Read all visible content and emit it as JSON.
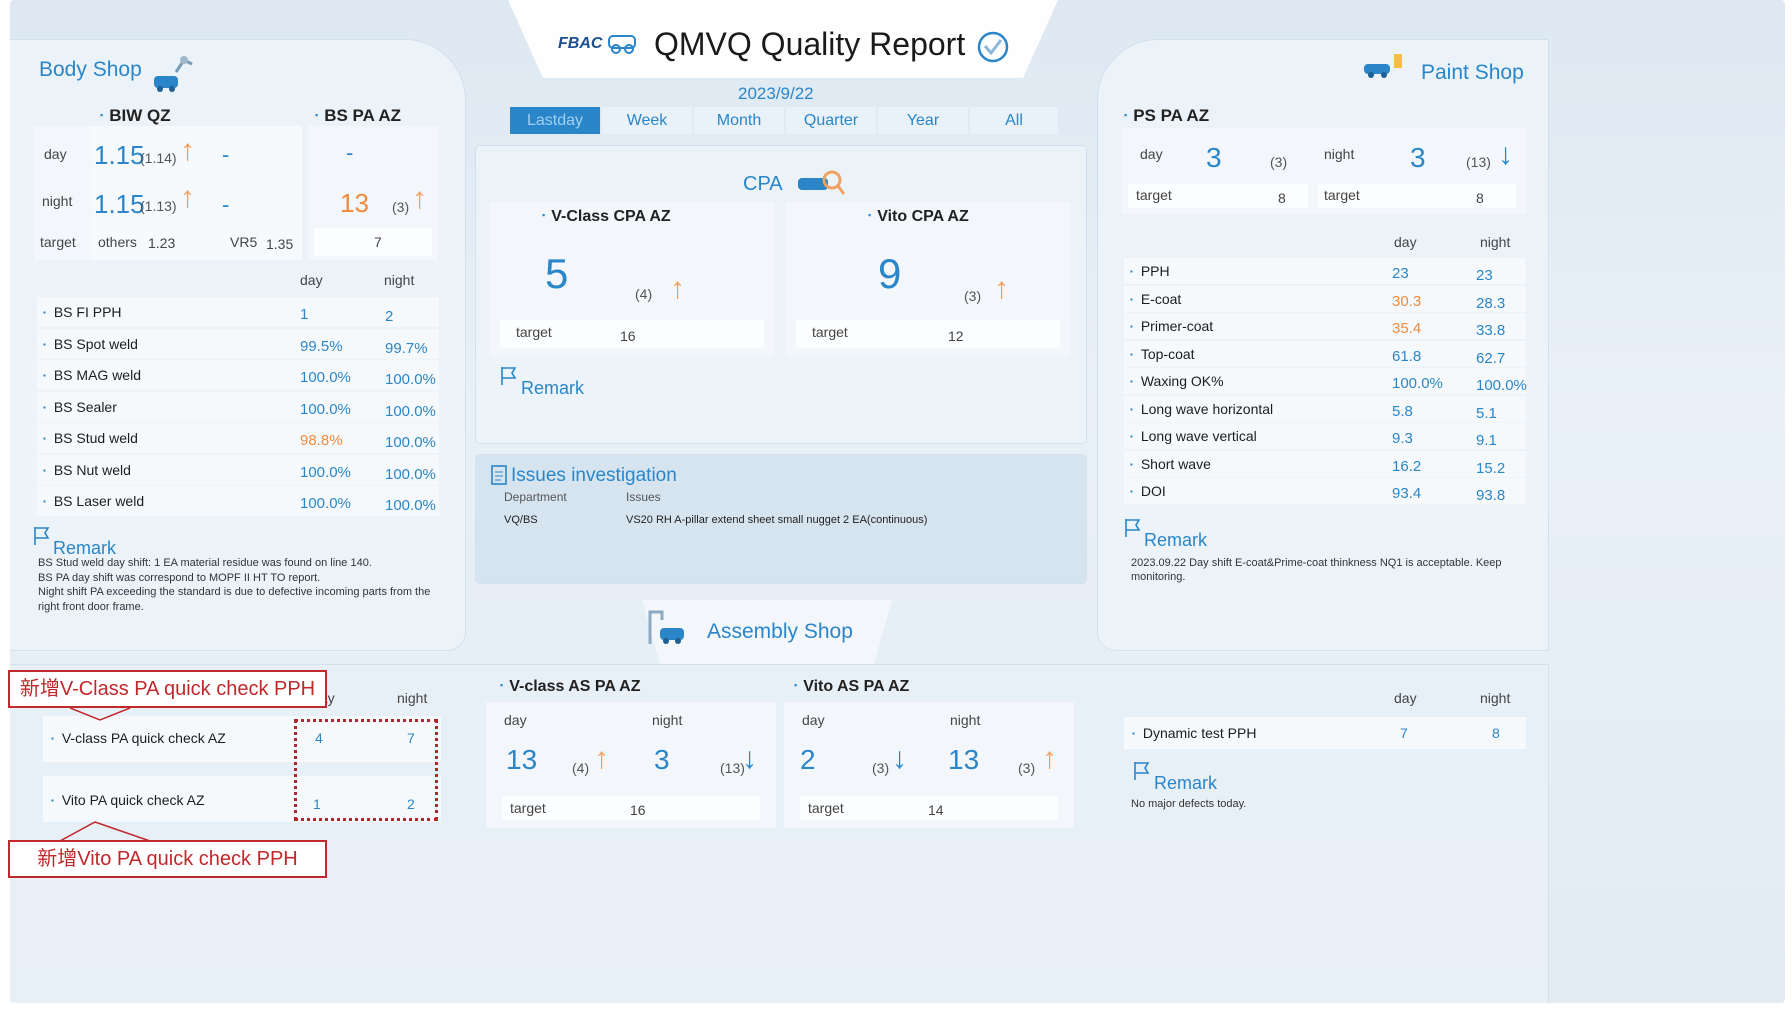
{
  "header": {
    "logo_text": "FBAC",
    "title": "QMVQ Quality Report",
    "date": "2023/9/22",
    "tabs": [
      "Lastday",
      "Week",
      "Month",
      "Quarter",
      "Year",
      "All"
    ],
    "active_tab": "Lastday"
  },
  "body_shop": {
    "title": "Body Shop",
    "biw_qz": {
      "title": "BIW QZ",
      "day_label": "day",
      "night_label": "night",
      "target_label": "target",
      "day_value": "1.15",
      "day_prev": "(1.14)",
      "day_dash": "-",
      "night_value": "1.15",
      "night_prev": "(1.13)",
      "night_dash": "-",
      "others_label": "others",
      "others_value": "1.23",
      "vr5_label": "VR5",
      "vr5_value": "1.35"
    },
    "bs_pa_az": {
      "title": "BS PA AZ",
      "day_value": "-",
      "night_value": "13",
      "night_prev": "(3)",
      "target_value": "7"
    },
    "col_day": "day",
    "col_night": "night",
    "metrics": [
      {
        "label": "BS FI PPH",
        "day": "1",
        "night": "2",
        "day_color": "blue"
      },
      {
        "label": "BS Spot weld",
        "day": "99.5%",
        "night": "99.7%",
        "day_color": "blue"
      },
      {
        "label": "BS MAG weld",
        "day": "100.0%",
        "night": "100.0%",
        "day_color": "blue"
      },
      {
        "label": "BS Sealer",
        "day": "100.0%",
        "night": "100.0%",
        "day_color": "blue"
      },
      {
        "label": "BS Stud weld",
        "day": "98.8%",
        "night": "100.0%",
        "day_color": "orange"
      },
      {
        "label": "BS Nut weld",
        "day": "100.0%",
        "night": "100.0%",
        "day_color": "blue"
      },
      {
        "label": "BS Laser weld",
        "day": "100.0%",
        "night": "100.0%",
        "day_color": "blue"
      }
    ],
    "remark_title": "Remark",
    "remark_lines": [
      "BS Stud weld day shift: 1 EA material residue was found on line 140.",
      "BS PA day shift was correspond to MOPF II HT TO report.",
      "Night shift PA exceeding the standard is due to defective incoming parts from the",
      "right front door frame."
    ]
  },
  "cpa": {
    "title": "CPA",
    "vclass": {
      "title": "V-Class CPA AZ",
      "value": "5",
      "prev": "(4)",
      "target_label": "target",
      "target_value": "16"
    },
    "vito": {
      "title": "Vito CPA AZ",
      "value": "9",
      "prev": "(3)",
      "target_label": "target",
      "target_value": "12"
    },
    "remark_title": "Remark"
  },
  "issues": {
    "title": "Issues investigation",
    "col_department": "Department",
    "col_issues": "Issues",
    "rows": [
      {
        "department": "VQ/BS",
        "issue": "VS20 RH A-pillar extend sheet small nugget 2 EA(continuous)"
      }
    ]
  },
  "paint_shop": {
    "title": "Paint Shop",
    "ps_pa_az": {
      "title": "PS PA AZ",
      "day_label": "day",
      "day_value": "3",
      "day_prev": "(3)",
      "night_label": "night",
      "night_value": "3",
      "night_prev": "(13)",
      "target_label": "target",
      "day_target": "8",
      "night_target": "8"
    },
    "col_day": "day",
    "col_night": "night",
    "metrics": [
      {
        "label": "PPH",
        "day": "23",
        "night": "23",
        "day_color": "blue"
      },
      {
        "label": "E-coat",
        "day": "30.3",
        "night": "28.3",
        "day_color": "orange"
      },
      {
        "label": "Primer-coat",
        "day": "35.4",
        "night": "33.8",
        "day_color": "orange"
      },
      {
        "label": "Top-coat",
        "day": "61.8",
        "night": "62.7",
        "day_color": "blue"
      },
      {
        "label": "Waxing OK%",
        "day": "100.0%",
        "night": "100.0%",
        "day_color": "blue"
      },
      {
        "label": "Long wave horizontal",
        "day": "5.8",
        "night": "5.1",
        "day_color": "blue"
      },
      {
        "label": "Long wave vertical",
        "day": "9.3",
        "night": "9.1",
        "day_color": "blue"
      },
      {
        "label": "Short wave",
        "day": "16.2",
        "night": "15.2",
        "day_color": "blue"
      },
      {
        "label": "DOI",
        "day": "93.4",
        "night": "93.8",
        "day_color": "blue"
      }
    ],
    "remark_title": "Remark",
    "remark_lines": [
      "2023.09.22 Day shift E-coat&Prime-coat thinkness NQ1 is acceptable. Keep",
      "monitoring."
    ]
  },
  "assembly_shop": {
    "title": "Assembly Shop",
    "quick_check": {
      "col_day": "day",
      "col_night": "night",
      "rows": [
        {
          "label": "V-class PA quick check AZ",
          "day": "4",
          "night": "7"
        },
        {
          "label": "Vito PA quick check AZ",
          "day": "1",
          "night": "2"
        }
      ]
    },
    "vclass_as": {
      "title": "V-class AS PA AZ",
      "day_label": "day",
      "night_label": "night",
      "day_value": "13",
      "day_prev": "(4)",
      "night_value": "3",
      "night_prev": "(13)",
      "target_label": "target",
      "target_value": "16"
    },
    "vito_as": {
      "title": "Vito AS PA AZ",
      "day_label": "day",
      "night_label": "night",
      "day_value": "2",
      "day_prev": "(3)",
      "night_value": "13",
      "night_prev": "(3)",
      "target_label": "target",
      "target_value": "14"
    },
    "dynamic": {
      "col_day": "day",
      "col_night": "night",
      "label": "Dynamic test PPH",
      "day": "7",
      "night": "8"
    },
    "remark_title": "Remark",
    "remark_text": "No major defects today."
  },
  "annotations": {
    "callout_vclass": "新增V-Class PA quick check PPH",
    "callout_vito": "新增Vito PA quick check PPH"
  },
  "colors": {
    "accent_blue": "#2a86c8",
    "warn_orange": "#f08a3c",
    "callout_red": "#c0282c"
  }
}
